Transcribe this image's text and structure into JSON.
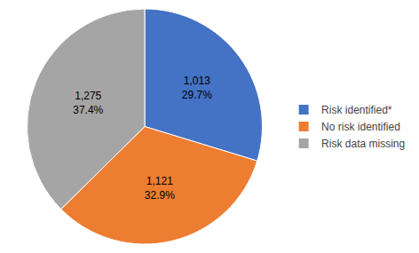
{
  "chart_data": {
    "type": "pie",
    "categories": [
      "Risk identified*",
      "No risk identified",
      "Risk data missing"
    ],
    "values": [
      1013,
      1121,
      1275
    ],
    "value_labels": [
      "1,013",
      "1,121",
      "1,275"
    ],
    "percentages": [
      29.7,
      32.9,
      37.4
    ],
    "percentage_labels": [
      "29.7%",
      "32.9%",
      "37.4%"
    ],
    "colors": [
      "#4472C4",
      "#ED7D31",
      "#A5A5A5"
    ],
    "legend": "right"
  }
}
